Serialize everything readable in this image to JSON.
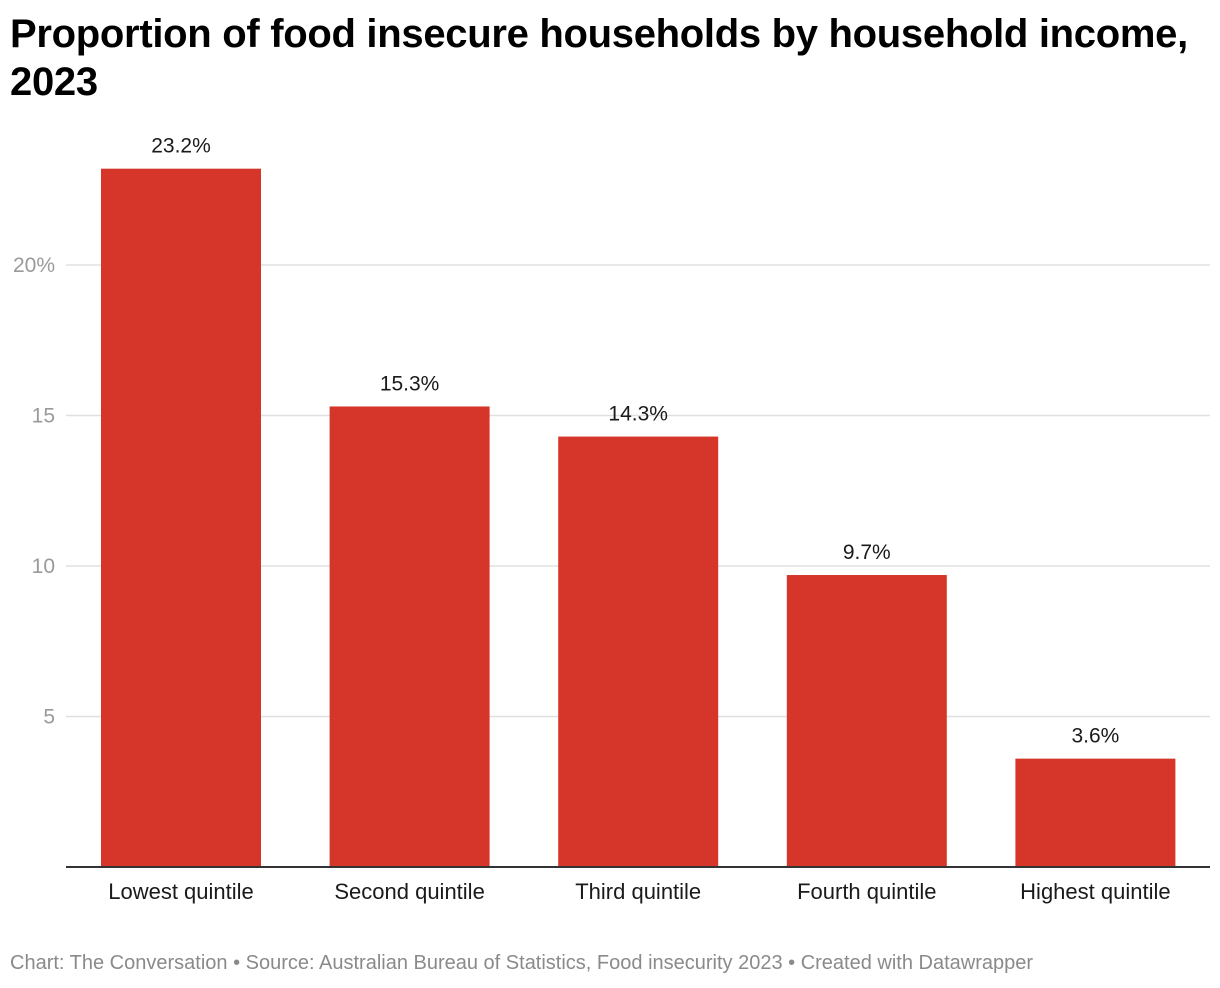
{
  "colors": {
    "bar": "#d6352a",
    "grid": "#e0e0e0",
    "axis": "#333333",
    "tick_label": "#9a9a9a",
    "category_label": "#1a1a1a",
    "value_label": "#1a1a1a",
    "footer": "#8a8a8a"
  },
  "chart_data": {
    "type": "bar",
    "title": "Proportion of food insecure households by household income, 2023",
    "categories": [
      "Lowest quintile",
      "Second quintile",
      "Third quintile",
      "Fourth quintile",
      "Highest quintile"
    ],
    "values": [
      23.2,
      15.3,
      14.3,
      9.7,
      3.6
    ],
    "value_labels": [
      "23.2%",
      "15.3%",
      "14.3%",
      "9.7%",
      "3.6%"
    ],
    "y_ticks": [
      5,
      10,
      15,
      20
    ],
    "y_tick_labels": [
      "5",
      "10",
      "15",
      "20%"
    ],
    "ylim": [
      0,
      23.2
    ],
    "grid": true,
    "legend": "none"
  },
  "footer": {
    "text": "Chart: The Conversation • Source: Australian Bureau of Statistics, Food insecurity 2023 • Created with Datawrapper"
  }
}
